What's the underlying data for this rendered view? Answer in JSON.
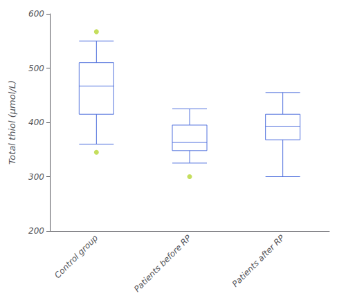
{
  "chart_data": {
    "type": "box",
    "categories": [
      "Control group",
      "Patients before RP",
      "Patients after RP"
    ],
    "boxes": [
      {
        "whisker_low": 360,
        "q1": 415,
        "median": 467,
        "q3": 510,
        "whisker_high": 550,
        "fliers_low": [
          345
        ],
        "fliers_high": [
          567
        ]
      },
      {
        "whisker_low": 325,
        "q1": 348,
        "median": 363,
        "q3": 395,
        "whisker_high": 425,
        "fliers_low": [
          300
        ],
        "fliers_high": []
      },
      {
        "whisker_low": 300,
        "q1": 368,
        "median": 393,
        "q3": 415,
        "whisker_high": 455,
        "fliers_low": [],
        "fliers_high": []
      }
    ],
    "ylabel": "Total thiol (μmol/L)",
    "ylim": [
      200,
      600
    ],
    "yticks": [
      200,
      300,
      400,
      500,
      600
    ],
    "grid": false
  }
}
